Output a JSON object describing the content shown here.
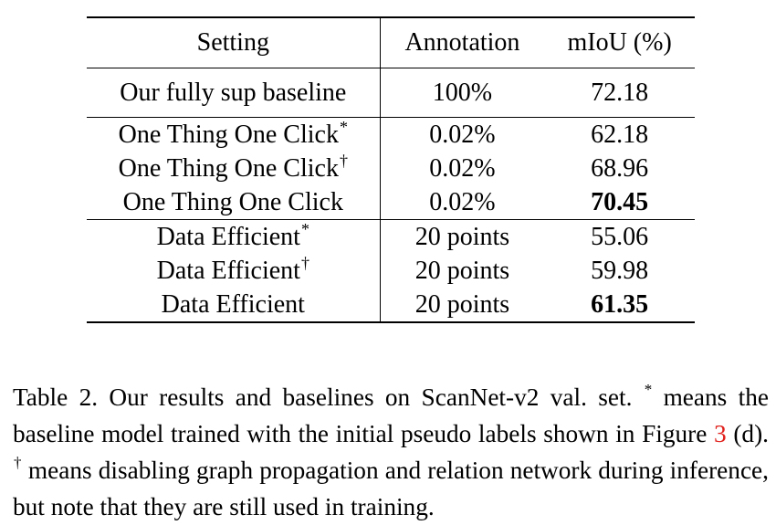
{
  "table": {
    "headers": [
      "Setting",
      "Annotation",
      "mIoU (%)"
    ],
    "groups": [
      {
        "rows": [
          {
            "setting": "Our fully sup baseline",
            "mark": "",
            "annotation": "100%",
            "miou": "72.18",
            "bold": false
          }
        ]
      },
      {
        "rows": [
          {
            "setting": "One Thing One Click",
            "mark": "*",
            "annotation": "0.02%",
            "miou": "62.18",
            "bold": false
          },
          {
            "setting": "One Thing One Click",
            "mark": "†",
            "annotation": "0.02%",
            "miou": "68.96",
            "bold": false
          },
          {
            "setting": "One Thing One Click",
            "mark": "",
            "annotation": "0.02%",
            "miou": "70.45",
            "bold": true
          }
        ]
      },
      {
        "rows": [
          {
            "setting": "Data Efficient",
            "mark": "*",
            "annotation": "20 points",
            "miou": "55.06",
            "bold": false
          },
          {
            "setting": "Data Efficient",
            "mark": "†",
            "annotation": "20 points",
            "miou": "59.98",
            "bold": false
          },
          {
            "setting": "Data Efficient",
            "mark": "",
            "annotation": "20 points",
            "miou": "61.35",
            "bold": true
          }
        ]
      }
    ]
  },
  "caption": {
    "part1": "Table 2. Our results and baselines on ScanNet-v2 val. set. ",
    "star": "*",
    "part2": " means the baseline model trained with the initial pseudo labels shown in Figure ",
    "ref": "3",
    "part3": " (d). ",
    "dagger": "†",
    "part4": " means disabling graph propagation and relation network during inference, but note that they are still used in training."
  },
  "colors": {
    "reference_link": "#e0201b",
    "text": "#000000"
  }
}
